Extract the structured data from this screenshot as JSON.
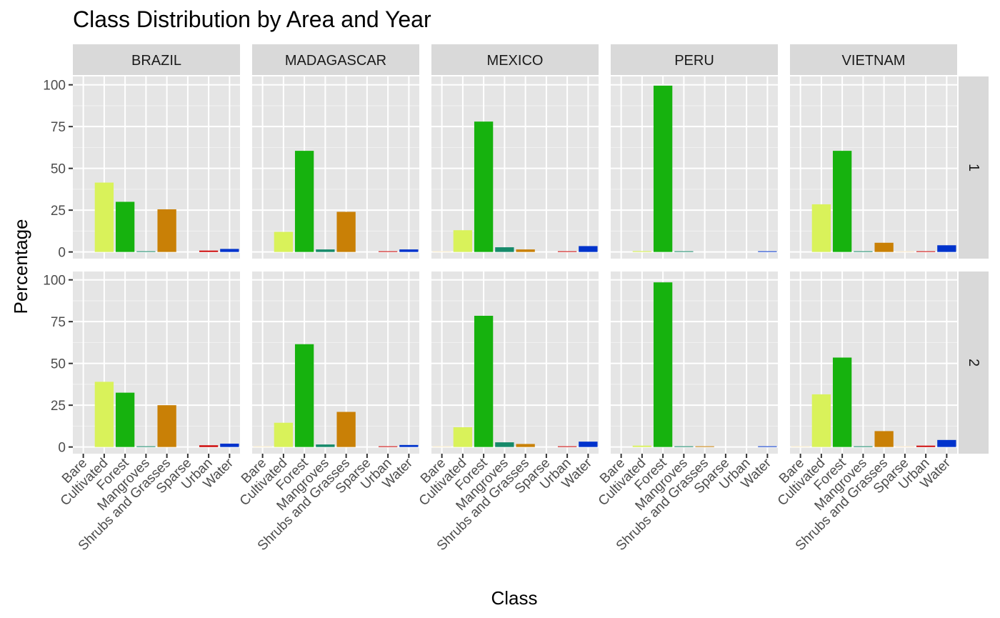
{
  "chart_data": {
    "type": "bar",
    "title": "Class Distribution by Area and Year",
    "xlabel": "Class",
    "ylabel": "Percentage",
    "ylim": [
      -4,
      105
    ],
    "yticks": [
      0,
      25,
      50,
      75,
      100
    ],
    "grid": true,
    "facet_cols": [
      "BRAZIL",
      "MADAGASCAR",
      "MEXICO",
      "PERU",
      "VIETNAM"
    ],
    "facet_rows": [
      "1",
      "2"
    ],
    "categories": [
      "Bare",
      "Cultivated",
      "Forest",
      "Mangroves",
      "Shrubs and Grasses",
      "Sparse",
      "Urban",
      "Water"
    ],
    "colors": {
      "Bare": "#fff2cc",
      "Cultivated": "#d9f25a",
      "Forest": "#16b20e",
      "Mangroves": "#168a6a",
      "Shrubs and Grasses": "#c98006",
      "Sparse": "#fde9c8",
      "Urban": "#cc0000",
      "Water": "#0033cc"
    },
    "panels": [
      {
        "area": "BRAZIL",
        "year": "1",
        "values": [
          0,
          41.5,
          30.0,
          0.3,
          25.5,
          0,
          0.8,
          1.8
        ]
      },
      {
        "area": "MADAGASCAR",
        "year": "1",
        "values": [
          0,
          12.0,
          60.5,
          1.5,
          24.0,
          0,
          0.4,
          1.5
        ]
      },
      {
        "area": "MEXICO",
        "year": "1",
        "values": [
          0.3,
          13.0,
          78.0,
          2.8,
          1.5,
          0,
          0.4,
          3.5
        ]
      },
      {
        "area": "PERU",
        "year": "1",
        "values": [
          0,
          0.5,
          99.5,
          0.3,
          0,
          0,
          0,
          0.3
        ]
      },
      {
        "area": "VIETNAM",
        "year": "1",
        "values": [
          0,
          28.5,
          60.5,
          0.3,
          5.5,
          0.3,
          0.4,
          4.0
        ]
      },
      {
        "area": "BRAZIL",
        "year": "2",
        "values": [
          0,
          39.0,
          32.5,
          0.3,
          25.0,
          0,
          1.0,
          2.0
        ]
      },
      {
        "area": "MADAGASCAR",
        "year": "2",
        "values": [
          0.2,
          14.5,
          61.5,
          1.5,
          21.0,
          0,
          0.4,
          1.2
        ]
      },
      {
        "area": "MEXICO",
        "year": "2",
        "values": [
          0.3,
          11.8,
          78.5,
          2.8,
          1.8,
          0,
          0.4,
          3.2
        ]
      },
      {
        "area": "PERU",
        "year": "2",
        "values": [
          0,
          0.8,
          98.5,
          0.3,
          0.3,
          0,
          0,
          0.3
        ]
      },
      {
        "area": "VIETNAM",
        "year": "2",
        "values": [
          0.2,
          31.5,
          53.5,
          0.3,
          9.5,
          0.3,
          0.8,
          4.2
        ]
      }
    ]
  }
}
